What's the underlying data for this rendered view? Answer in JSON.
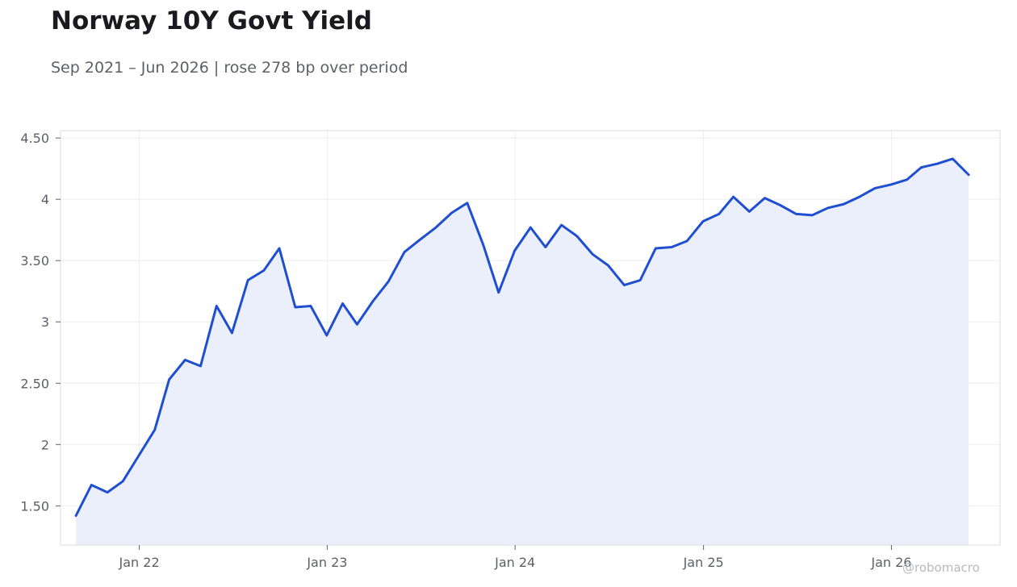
{
  "header": {
    "title": "Norway 10Y Govt Yield",
    "subtitle": "Sep 2021 – Jun 2026 | rose 278 bp over period"
  },
  "watermark": "@robomacro",
  "colors": {
    "line": "#1f4fd0",
    "area": "#eaeffb",
    "grid": "#eeeeee",
    "frame": "#dddddd"
  },
  "chart_data": {
    "type": "area",
    "title": "Norway 10Y Govt Yield",
    "subtitle": "Sep 2021 – Jun 2026 | rose 278 bp over period",
    "xlabel": "",
    "ylabel": "",
    "ylim": [
      1.18,
      4.56
    ],
    "xlim": [
      "2021-08-01",
      "2026-07-31"
    ],
    "grid": true,
    "legend": "none",
    "x_ticks": [
      {
        "date": "2022-01-01",
        "label": "Jan 22"
      },
      {
        "date": "2023-01-01",
        "label": "Jan 23"
      },
      {
        "date": "2024-01-01",
        "label": "Jan 24"
      },
      {
        "date": "2025-01-01",
        "label": "Jan 25"
      },
      {
        "date": "2026-01-01",
        "label": "Jan 26"
      }
    ],
    "y_ticks": [
      {
        "value": 1.5,
        "label": "1.50"
      },
      {
        "value": 2,
        "label": "2"
      },
      {
        "value": 2.5,
        "label": "2.50"
      },
      {
        "value": 3,
        "label": "3"
      },
      {
        "value": 3.5,
        "label": "3.50"
      },
      {
        "value": 4,
        "label": "4"
      },
      {
        "value": 4.5,
        "label": "4.50"
      }
    ],
    "x": [
      "2021-08-31",
      "2021-09-30",
      "2021-10-31",
      "2021-11-30",
      "2021-12-31",
      "2022-01-31",
      "2022-02-28",
      "2022-03-31",
      "2022-04-30",
      "2022-05-31",
      "2022-06-30",
      "2022-07-31",
      "2022-08-31",
      "2022-09-30",
      "2022-10-31",
      "2022-11-30",
      "2022-12-31",
      "2023-01-31",
      "2023-02-28",
      "2023-03-31",
      "2023-04-30",
      "2023-05-31",
      "2023-06-30",
      "2023-07-31",
      "2023-08-31",
      "2023-09-30",
      "2023-10-31",
      "2023-11-30",
      "2023-12-31",
      "2024-01-31",
      "2024-02-29",
      "2024-03-31",
      "2024-04-30",
      "2024-05-31",
      "2024-06-30",
      "2024-07-31",
      "2024-08-31",
      "2024-09-30",
      "2024-10-31",
      "2024-11-30",
      "2024-12-31",
      "2025-01-31",
      "2025-02-28",
      "2025-03-31",
      "2025-04-30",
      "2025-05-31",
      "2025-06-30",
      "2025-07-31",
      "2025-08-31",
      "2025-09-30",
      "2025-10-31",
      "2025-11-30",
      "2025-12-31",
      "2026-01-31",
      "2026-02-28",
      "2026-03-31",
      "2026-04-30",
      "2026-05-31"
    ],
    "series": [
      {
        "values": [
          1.42,
          1.67,
          1.61,
          1.7,
          1.91,
          2.12,
          2.53,
          2.69,
          2.64,
          3.13,
          2.91,
          3.34,
          3.42,
          3.6,
          3.12,
          3.13,
          2.89,
          3.15,
          2.98,
          3.17,
          3.33,
          3.57,
          3.67,
          3.77,
          3.89,
          3.97,
          3.63,
          3.24,
          3.58,
          3.77,
          3.61,
          3.79,
          3.7,
          3.55,
          3.46,
          3.3,
          3.34,
          3.6,
          3.61,
          3.66,
          3.82,
          3.88,
          4.02,
          3.9,
          4.01,
          3.95,
          3.88,
          3.87,
          3.93,
          3.96,
          4.02,
          4.09,
          4.12,
          4.16,
          4.26,
          4.29,
          4.33,
          4.2
        ]
      }
    ]
  }
}
